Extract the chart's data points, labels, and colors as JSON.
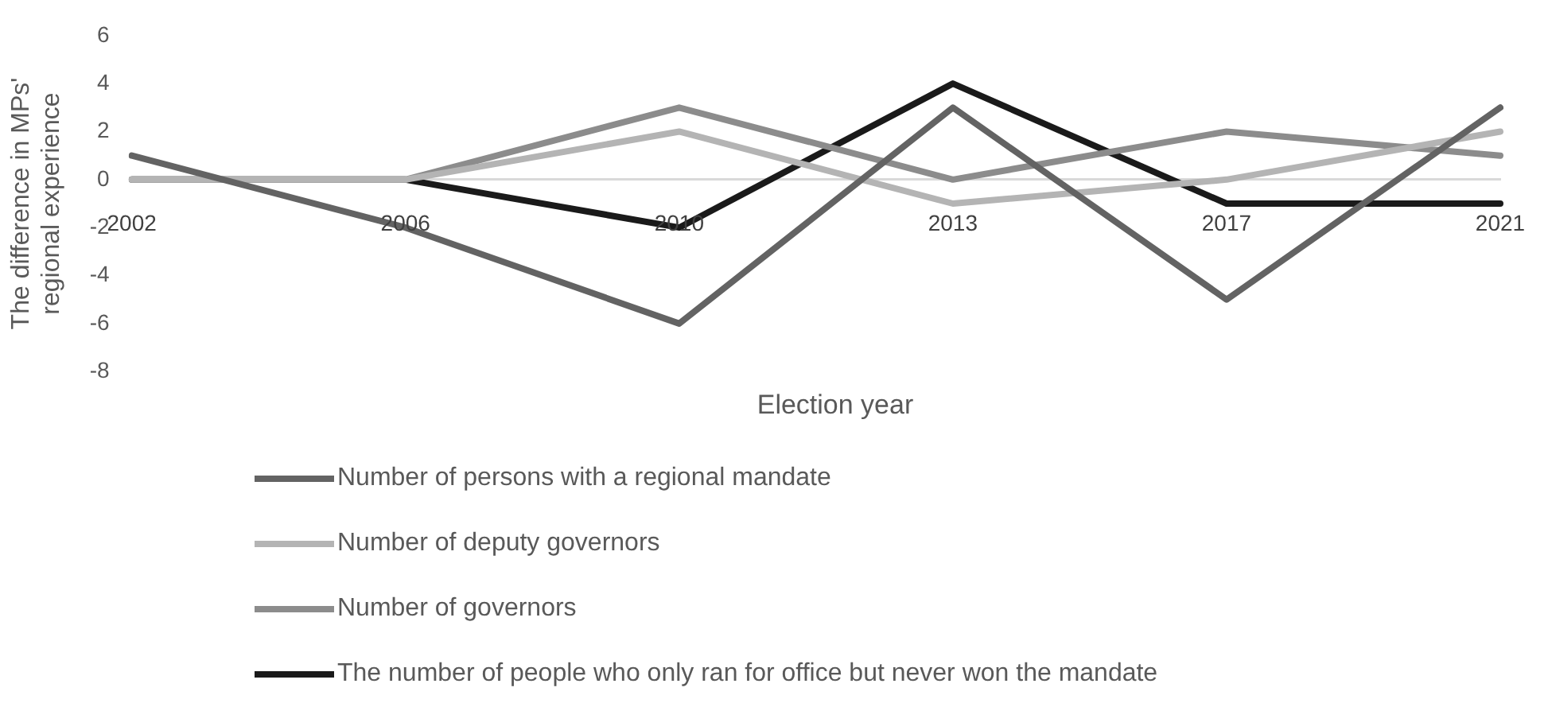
{
  "chart_data": {
    "type": "line",
    "xlabel": "Election year",
    "ylabel": "The difference in MPs' regional experience",
    "categories": [
      "2002",
      "2006",
      "2010",
      "2013",
      "2017",
      "2021"
    ],
    "series": [
      {
        "name": "Number of persons with a regional mandate",
        "color": "#636363",
        "values": [
          1,
          -2,
          -6,
          3,
          -5,
          3
        ]
      },
      {
        "name": "Number of deputy governors",
        "color": "#b4b4b4",
        "values": [
          0,
          0,
          2,
          -1,
          0,
          2
        ]
      },
      {
        "name": "Number of governors",
        "color": "#8c8c8c",
        "values": [
          0,
          0,
          3,
          0,
          2,
          1
        ]
      },
      {
        "name": "The number of people who only ran for office but never won the mandate",
        "color": "#1a1a1a",
        "values": [
          0,
          0,
          -2,
          4,
          -1,
          -1
        ]
      }
    ],
    "ylim": [
      -8,
      6
    ],
    "yticks": [
      -8,
      -6,
      -4,
      -2,
      0,
      2,
      4,
      6
    ],
    "grid": false,
    "legend": "bottom",
    "marker": "none",
    "line_style": "solid"
  }
}
